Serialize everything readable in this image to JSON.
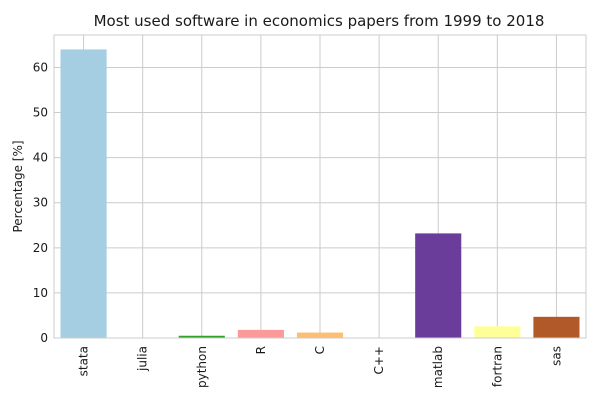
{
  "chart_data": {
    "type": "bar",
    "title": "Most used software in economics papers from 1999 to 2018",
    "xlabel": "",
    "ylabel": "Percentage [%]",
    "categories": [
      "stata",
      "julia",
      "python",
      "R",
      "C",
      "C++",
      "matlab",
      "fortran",
      "sas"
    ],
    "values": [
      64.0,
      0.0,
      0.5,
      1.8,
      1.2,
      0.0,
      23.2,
      2.6,
      4.7
    ],
    "colors": [
      "#a6cee3",
      "#1f78b4",
      "#33a02c",
      "#fb9a99",
      "#fdbf6f",
      "#ff7f00",
      "#6a3d9a",
      "#ffff99",
      "#b15928"
    ],
    "ylim": [
      0,
      67.2
    ],
    "yticks": [
      0,
      10,
      20,
      30,
      40,
      50,
      60
    ],
    "grid": true,
    "legend": "none"
  }
}
